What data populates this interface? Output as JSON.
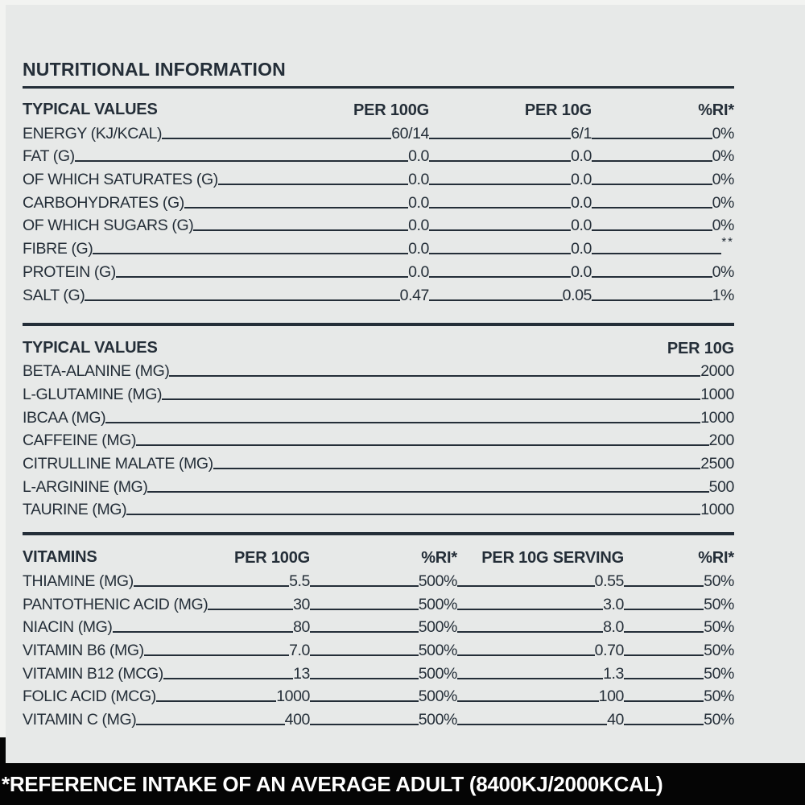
{
  "colors": {
    "background": "#e7e9e8",
    "ink": "#242e38",
    "footer_background": "#050505",
    "footer_text": "#ffffff"
  },
  "title": "NUTRITIONAL INFORMATION",
  "footnote": "*REFERENCE INTAKE OF AN AVERAGE ADULT (8400KJ/2000KCAL)",
  "tables": [
    {
      "name": "macros",
      "header_label": "TYPICAL VALUES",
      "columns": [
        "PER 100G",
        "PER 10G",
        "%RI*"
      ],
      "rows": [
        {
          "label": "ENERGY (KJ/KCAL)",
          "values": [
            "60/14",
            "6/1",
            "0%"
          ]
        },
        {
          "label": "FAT (G)",
          "values": [
            "0.0",
            "0.0",
            "0%"
          ]
        },
        {
          "label": "OF WHICH SATURATES (G)",
          "values": [
            "0.0",
            "0.0",
            "0%"
          ]
        },
        {
          "label": "CARBOHYDRATES (G)",
          "values": [
            "0.0",
            "0.0",
            "0%"
          ]
        },
        {
          "label": "OF WHICH SUGARS (G)",
          "values": [
            "0.0",
            "0.0",
            "0%"
          ]
        },
        {
          "label": "FIBRE (G)",
          "values": [
            "0.0",
            "0.0",
            "**"
          ]
        },
        {
          "label": "PROTEIN (G)",
          "values": [
            "0.0",
            "0.0",
            "0%"
          ]
        },
        {
          "label": "SALT (G)",
          "values": [
            "0.47",
            "0.05",
            "1%"
          ]
        }
      ]
    },
    {
      "name": "actives",
      "header_label": "TYPICAL VALUES",
      "columns": [
        "PER 10G"
      ],
      "rows": [
        {
          "label": "BETA-ALANINE (MG)",
          "values": [
            "2000"
          ]
        },
        {
          "label": "L-GLUTAMINE (MG)",
          "values": [
            "1000"
          ]
        },
        {
          "label": "IBCAA (MG)",
          "values": [
            "1000"
          ]
        },
        {
          "label": "CAFFEINE (MG)",
          "values": [
            "200"
          ]
        },
        {
          "label": "CITRULLINE MALATE (MG)",
          "values": [
            "2500"
          ]
        },
        {
          "label": "L-ARGININE (MG)",
          "values": [
            "500"
          ]
        },
        {
          "label": "TAURINE (MG)",
          "values": [
            "1000"
          ]
        }
      ]
    },
    {
      "name": "vitamins",
      "header_label": "VITAMINS",
      "columns": [
        "PER 100G",
        "%RI*",
        "PER 10G SERVING",
        "%RI*"
      ],
      "rows": [
        {
          "label": "THIAMINE (MG)",
          "values": [
            "5.5",
            "500%",
            "0.55",
            "50%"
          ]
        },
        {
          "label": "PANTOTHENIC ACID (MG)",
          "values": [
            "30",
            "500%",
            "3.0",
            "50%"
          ]
        },
        {
          "label": "NIACIN (MG)",
          "values": [
            "80",
            "500%",
            "8.0",
            "50%"
          ]
        },
        {
          "label": "VITAMIN B6 (MG)",
          "values": [
            "7.0",
            "500%",
            "0.70",
            "50%"
          ]
        },
        {
          "label": "VITAMIN B12 (MCG)",
          "values": [
            "13",
            "500%",
            "1.3",
            "50%"
          ]
        },
        {
          "label": "FOLIC ACID (MCG)",
          "values": [
            "1000",
            "500%",
            "100",
            "50%"
          ]
        },
        {
          "label": "VITAMIN C (MG)",
          "values": [
            "400",
            "500%",
            "40",
            "50%"
          ]
        }
      ]
    }
  ]
}
